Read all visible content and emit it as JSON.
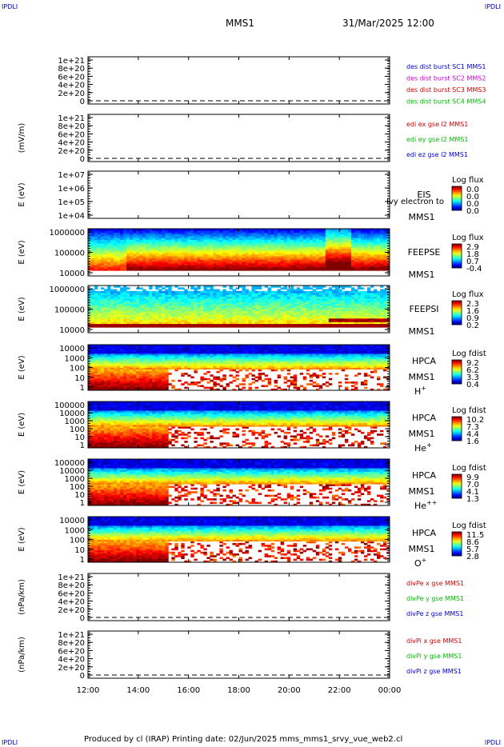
{
  "corners": {
    "tl": "IPDLI",
    "tr": "IPDLI",
    "bl": "IPDLI",
    "br": "IPDLI"
  },
  "header": {
    "spacecraft": "MMS1",
    "datetime": "31/Mar/2025 12:00"
  },
  "footer": {
    "text": "Produced by cl (IRAP)   Printing date: 02/Jun/2025   mms_mms1_srvy_vue_web2.cl"
  },
  "colors": {
    "red": "#cc0000",
    "magenta": "#cc00cc",
    "green": "#00bb00",
    "blue": "#0000cc"
  },
  "chart_data": {
    "type": "heatmap",
    "x_ticks": [
      "12:00",
      "14:00",
      "16:00",
      "18:00",
      "20:00",
      "22:00",
      "00:00"
    ],
    "panels": [
      {
        "id": "p1",
        "kind": "line",
        "ylabel": "",
        "yticks": [
          "1e+21",
          "8e+20",
          "6e+20",
          "4e+20",
          "2e+20",
          "0"
        ],
        "legend": [
          {
            "text": "des dist burst SC1 MMS1",
            "color": "blue"
          },
          {
            "text": "des dist burst SC2 MMS2",
            "color": "magenta"
          },
          {
            "text": "des dist burst SC3 MMS3",
            "color": "red"
          },
          {
            "text": "des dist burst SC4 MMS4",
            "color": "green"
          }
        ]
      },
      {
        "id": "p2",
        "kind": "line",
        "ylabel": "(mV/m)",
        "yticks": [
          "1e+21",
          "8e+20",
          "6e+20",
          "4e+20",
          "2e+20",
          "0"
        ],
        "legend": [
          {
            "text": "edi ex gse l2 MMS1",
            "color": "red"
          },
          {
            "text": "edi ey gse l2 MMS1",
            "color": "green"
          },
          {
            "text": "edi ez gse l2 MMS1",
            "color": "blue"
          }
        ]
      },
      {
        "id": "p3",
        "kind": "empty",
        "ylabel": "E (eV)",
        "yticks": [
          "1e+07",
          "1e+06",
          "1e+05",
          "1e+04"
        ],
        "label1": "EIS",
        "label2": "MMS1",
        "overlay": "Ivy electron to",
        "cb_title": "Log flux",
        "cb_ticks": [
          "0.0",
          "0.0",
          "0.0",
          "0.0"
        ]
      },
      {
        "id": "p4",
        "kind": "feepse",
        "ylabel": "E (eV)",
        "yticks": [
          "1000000",
          "100000",
          "10000"
        ],
        "label1": "FEEPSE",
        "label2": "MMS1",
        "cb_title": "Log flux",
        "cb_ticks": [
          "2.9",
          "1.8",
          "0.7",
          "-0.4"
        ]
      },
      {
        "id": "p5",
        "kind": "feepsi",
        "ylabel": "E (eV)",
        "yticks": [
          "1000000",
          "100000",
          "10000"
        ],
        "label1": "FEEPSI",
        "label2": "MMS1",
        "cb_title": "Log flux",
        "cb_ticks": [
          "2.3",
          "1.6",
          "0.9",
          "0.2"
        ]
      },
      {
        "id": "p6",
        "kind": "hpca",
        "ylabel": "E (eV)",
        "yticks": [
          "10000",
          "1000",
          "100",
          "10",
          "1"
        ],
        "label1": "HPCA",
        "label2": "MMS1",
        "species": "H+",
        "cb_title": "Log fdist",
        "cb_ticks": [
          "9.2",
          "6.2",
          "3.3",
          "0.4"
        ]
      },
      {
        "id": "p7",
        "kind": "hpca",
        "ylabel": "E (eV)",
        "yticks": [
          "100000",
          "10000",
          "1000",
          "100",
          "10",
          "1"
        ],
        "label1": "HPCA",
        "label2": "MMS1",
        "species": "He+",
        "cb_title": "Log fdist",
        "cb_ticks": [
          "10.2",
          "7.3",
          "4.4",
          "1.6"
        ]
      },
      {
        "id": "p8",
        "kind": "hpca",
        "ylabel": "E (eV)",
        "yticks": [
          "100000",
          "10000",
          "1000",
          "100",
          "10",
          "1"
        ],
        "label1": "HPCA",
        "label2": "MMS1",
        "species": "He++",
        "cb_title": "Log fdist",
        "cb_ticks": [
          "9.9",
          "7.0",
          "4.1",
          "1.3"
        ]
      },
      {
        "id": "p9",
        "kind": "hpca",
        "ylabel": "E (eV)",
        "yticks": [
          "10000",
          "1000",
          "100",
          "10",
          "1"
        ],
        "label1": "HPCA",
        "label2": "MMS1",
        "species": "O+",
        "cb_title": "Log fdist",
        "cb_ticks": [
          "11.5",
          "8.6",
          "5.7",
          "2.8"
        ]
      },
      {
        "id": "p10",
        "kind": "line",
        "ylabel": "(nPa/km)",
        "yticks": [
          "1e+21",
          "8e+20",
          "6e+20",
          "4e+20",
          "2e+20",
          "0"
        ],
        "legend": [
          {
            "text": "divPe x gse MMS1",
            "color": "red"
          },
          {
            "text": "divPe y gse MMS1",
            "color": "green"
          },
          {
            "text": "divPe z gse MMS1",
            "color": "blue"
          }
        ]
      },
      {
        "id": "p11",
        "kind": "line",
        "ylabel": "(nPa/km)",
        "yticks": [
          "1e+21",
          "8e+20",
          "6e+20",
          "4e+20",
          "2e+20",
          "0"
        ],
        "legend": [
          {
            "text": "divPi x gse MMS1",
            "color": "red"
          },
          {
            "text": "divPi y gse MMS1",
            "color": "green"
          },
          {
            "text": "divPi z gse MMS1",
            "color": "blue"
          }
        ]
      }
    ]
  }
}
